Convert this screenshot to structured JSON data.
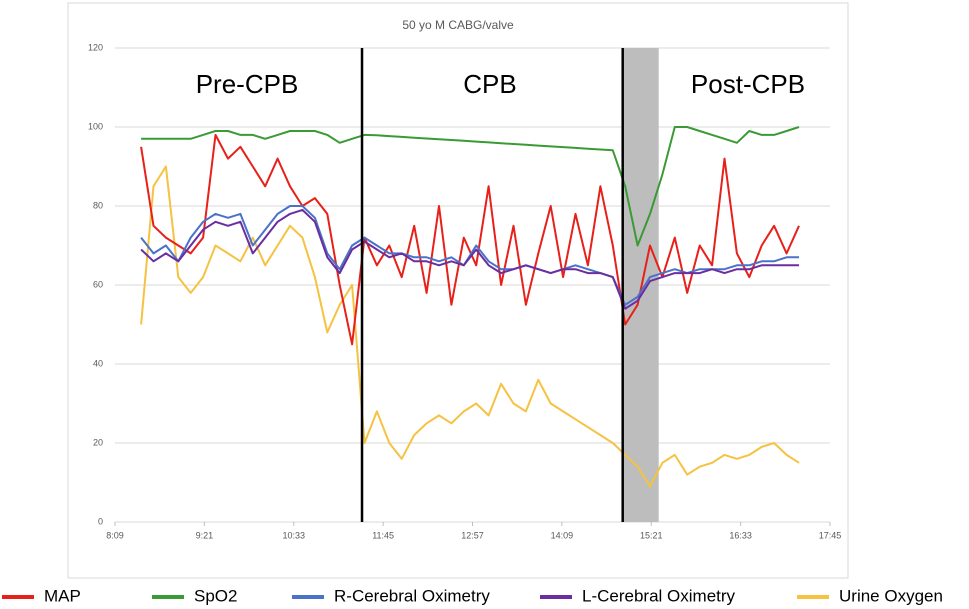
{
  "chart_data": {
    "type": "line",
    "title": "50 yo M CABG/valve",
    "annotations": [
      "Pre-CPB",
      "CPB",
      "Post-CPB"
    ],
    "phase_lines": [
      688,
      898
    ],
    "shaded_region": [
      898,
      927
    ],
    "x": [
      510,
      520,
      530,
      540,
      550,
      560,
      570,
      580,
      590,
      600,
      610,
      620,
      630,
      640,
      650,
      660,
      670,
      680,
      690,
      700,
      710,
      720,
      730,
      740,
      750,
      760,
      770,
      780,
      790,
      800,
      810,
      820,
      830,
      840,
      850,
      860,
      870,
      880,
      890,
      900,
      910,
      920,
      930,
      940,
      950,
      960,
      970,
      980,
      990,
      1000,
      1010,
      1020,
      1030,
      1040
    ],
    "xlim": [
      489,
      1065
    ],
    "xticks": [
      {
        "value": 489,
        "label": "8:09"
      },
      {
        "value": 561,
        "label": "9:21"
      },
      {
        "value": 633,
        "label": "10:33"
      },
      {
        "value": 705,
        "label": "11:45"
      },
      {
        "value": 777,
        "label": "12:57"
      },
      {
        "value": 849,
        "label": "14:09"
      },
      {
        "value": 921,
        "label": "15:21"
      },
      {
        "value": 993,
        "label": "16:33"
      },
      {
        "value": 1065,
        "label": "17:45"
      }
    ],
    "ylim": [
      0,
      120
    ],
    "yticks": [
      0,
      20,
      40,
      60,
      80,
      100,
      120
    ],
    "grid": true,
    "legend": "bottom",
    "series": [
      {
        "name": "MAP",
        "color": "#e8201a",
        "values": [
          95,
          75,
          72,
          70,
          68,
          72,
          98,
          92,
          95,
          90,
          85,
          92,
          85,
          80,
          82,
          78,
          60,
          45,
          72,
          65,
          70,
          62,
          75,
          58,
          80,
          55,
          72,
          65,
          85,
          60,
          75,
          55,
          68,
          80,
          62,
          78,
          65,
          85,
          70,
          50,
          55,
          70,
          62,
          72,
          58,
          70,
          65,
          92,
          68,
          62,
          70,
          75,
          68,
          75
        ]
      },
      {
        "name": "SpO2",
        "color": "#3a9a35",
        "values": [
          97,
          97,
          97,
          97,
          97,
          98,
          99,
          99,
          98,
          98,
          97,
          98,
          99,
          99,
          99,
          98,
          96,
          97,
          98,
          97.9,
          97.7,
          97.5,
          97.3,
          97.1,
          96.9,
          96.7,
          96.5,
          96.3,
          96.1,
          95.9,
          95.7,
          95.5,
          95.3,
          95.1,
          94.9,
          94.7,
          94.5,
          94.3,
          94.1,
          85,
          70,
          78,
          88,
          100,
          100,
          99,
          98,
          97,
          96,
          99,
          98,
          98,
          99,
          100
        ]
      },
      {
        "name": "R-Cerebral Oximetry",
        "color": "#4a72c8",
        "values": [
          72,
          68,
          70,
          66,
          72,
          76,
          78,
          77,
          78,
          70,
          74,
          78,
          80,
          80,
          77,
          68,
          64,
          70,
          72,
          70,
          68,
          68,
          67,
          67,
          66,
          67,
          65,
          70,
          66,
          64,
          64,
          65,
          64,
          63,
          64,
          65,
          64,
          63,
          62,
          55,
          57,
          62,
          63,
          64,
          63,
          64,
          64,
          64,
          65,
          65,
          66,
          66,
          67,
          67
        ]
      },
      {
        "name": "L-Cerebral Oximetry",
        "color": "#6a2ea0",
        "values": [
          69,
          66,
          68,
          66,
          70,
          74,
          76,
          75,
          76,
          68,
          72,
          76,
          78,
          79,
          76,
          67,
          63,
          69,
          71,
          69,
          67,
          68,
          66,
          66,
          65,
          66,
          65,
          69,
          65,
          63,
          64,
          65,
          64,
          63,
          64,
          64,
          63,
          63,
          62,
          54,
          56,
          61,
          62,
          63,
          63,
          63,
          64,
          63,
          64,
          64,
          65,
          65,
          65,
          65
        ]
      },
      {
        "name": "Urine Oxygen",
        "color": "#f5c242",
        "values": [
          50,
          85,
          90,
          62,
          58,
          62,
          70,
          68,
          66,
          72,
          65,
          70,
          75,
          72,
          62,
          48,
          55,
          60,
          20,
          28,
          20,
          16,
          22,
          25,
          27,
          25,
          28,
          30,
          27,
          35,
          30,
          28,
          36,
          30,
          28,
          26,
          24,
          22,
          20,
          17,
          14,
          9,
          15,
          17,
          12,
          14,
          15,
          17,
          16,
          17,
          19,
          20,
          17,
          15
        ]
      }
    ]
  }
}
